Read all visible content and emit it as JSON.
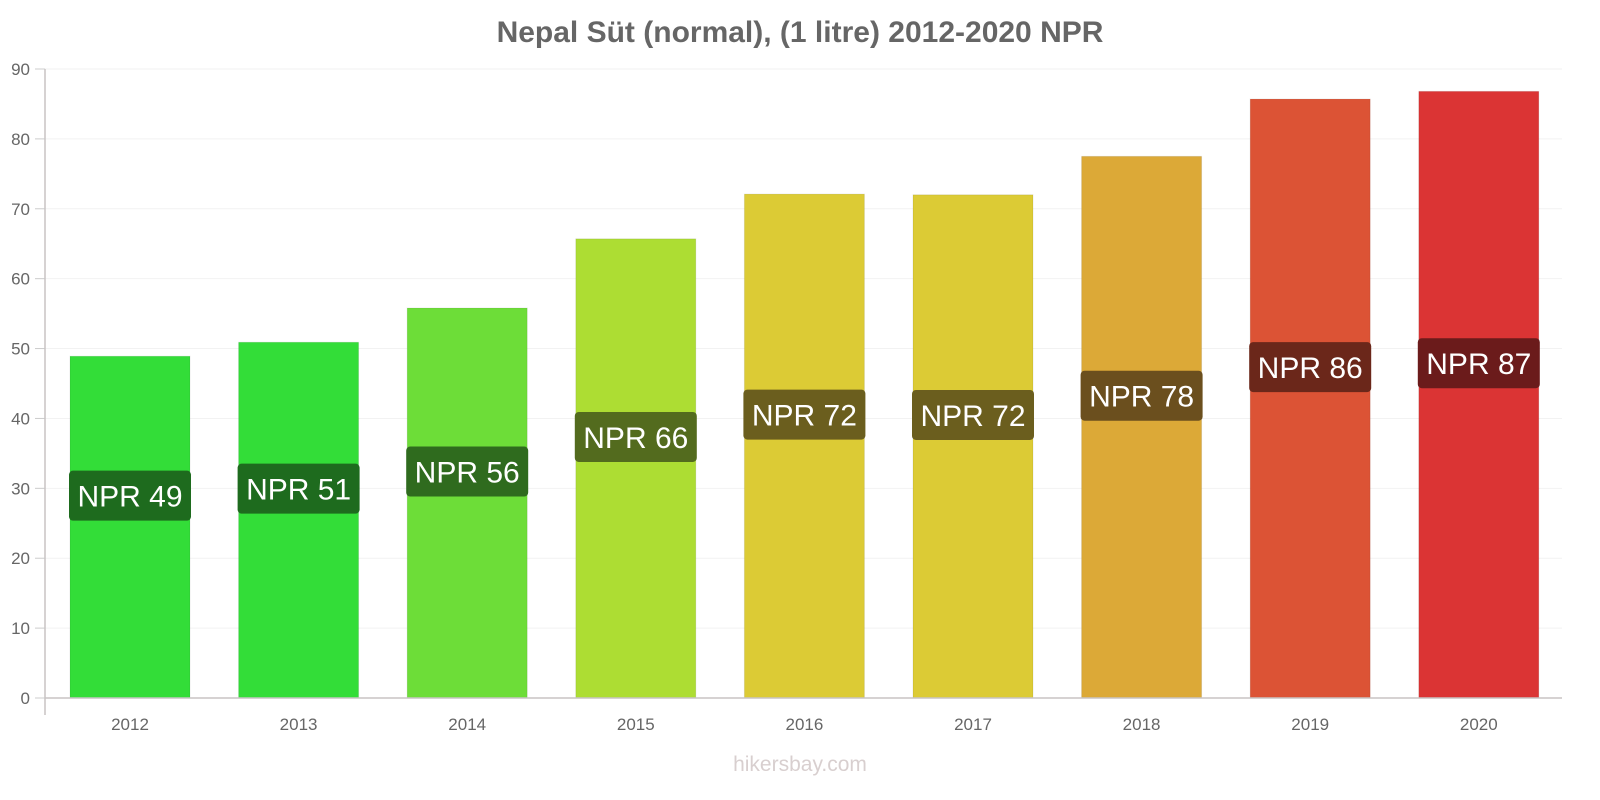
{
  "chart_data": {
    "type": "bar",
    "title": "Nepal Süt (normal), (1 litre) 2012-2020 NPR",
    "xlabel": "",
    "ylabel": "",
    "categories": [
      "2012",
      "2013",
      "2014",
      "2015",
      "2016",
      "2017",
      "2018",
      "2019",
      "2020"
    ],
    "values": [
      48.9,
      50.9,
      55.8,
      65.7,
      72.1,
      72.0,
      77.5,
      85.7,
      86.8
    ],
    "data_labels": [
      "NPR 49",
      "NPR 51",
      "NPR 56",
      "NPR 66",
      "NPR 72",
      "NPR 72",
      "NPR 78",
      "NPR 86",
      "NPR 87"
    ],
    "bar_colors": [
      "#33dd38",
      "#33dd38",
      "#6ddd38",
      "#addd33",
      "#dccb35",
      "#dccb35",
      "#dca937",
      "#dc5335",
      "#db3434"
    ],
    "label_colors": [
      "#1e6b1e",
      "#1e6b1e",
      "#2f6b1e",
      "#536b1e",
      "#6b5e1e",
      "#6b5e1e",
      "#6b4f1e",
      "#6b271a",
      "#6b1b1b"
    ],
    "ylim": [
      0,
      90
    ],
    "yticks": [
      0,
      10,
      20,
      30,
      40,
      50,
      60,
      70,
      80,
      90
    ],
    "grid": true,
    "legend": "none"
  },
  "watermark": "hikersbay.com"
}
